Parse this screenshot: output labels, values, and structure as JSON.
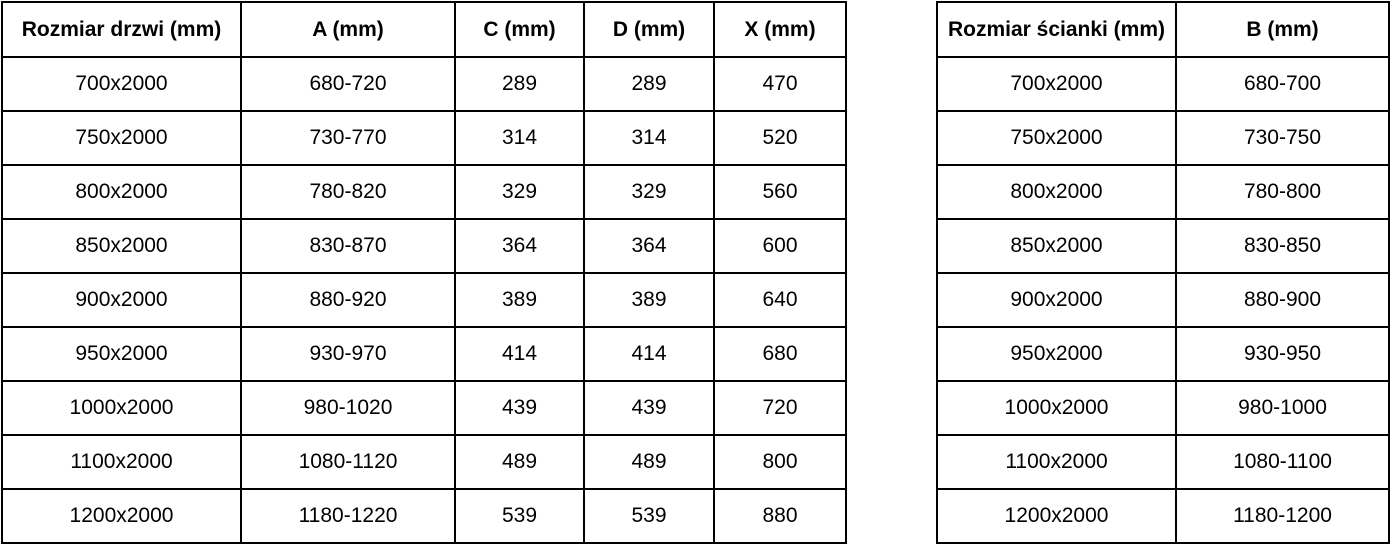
{
  "colors": {
    "border": "#000000",
    "text": "#000000",
    "background": "#ffffff"
  },
  "door_table": {
    "name": "door-size-table",
    "headers": [
      "Rozmiar drzwi (mm)",
      "A (mm)",
      "C (mm)",
      "D (mm)",
      "X (mm)"
    ],
    "rows": [
      [
        "700x2000",
        "680-720",
        "289",
        "289",
        "470"
      ],
      [
        "750x2000",
        "730-770",
        "314",
        "314",
        "520"
      ],
      [
        "800x2000",
        "780-820",
        "329",
        "329",
        "560"
      ],
      [
        "850x2000",
        "830-870",
        "364",
        "364",
        "600"
      ],
      [
        "900x2000",
        "880-920",
        "389",
        "389",
        "640"
      ],
      [
        "950x2000",
        "930-970",
        "414",
        "414",
        "680"
      ],
      [
        "1000x2000",
        "980-1020",
        "439",
        "439",
        "720"
      ],
      [
        "1100x2000",
        "1080-1120",
        "489",
        "489",
        "800"
      ],
      [
        "1200x2000",
        "1180-1220",
        "539",
        "539",
        "880"
      ]
    ]
  },
  "wall_table": {
    "name": "wall-size-table",
    "headers": [
      "Rozmiar ścianki (mm)",
      "B (mm)"
    ],
    "rows": [
      [
        "700x2000",
        "680-700"
      ],
      [
        "750x2000",
        "730-750"
      ],
      [
        "800x2000",
        "780-800"
      ],
      [
        "850x2000",
        "830-850"
      ],
      [
        "900x2000",
        "880-900"
      ],
      [
        "950x2000",
        "930-950"
      ],
      [
        "1000x2000",
        "980-1000"
      ],
      [
        "1100x2000",
        "1080-1100"
      ],
      [
        "1200x2000",
        "1180-1200"
      ]
    ]
  }
}
